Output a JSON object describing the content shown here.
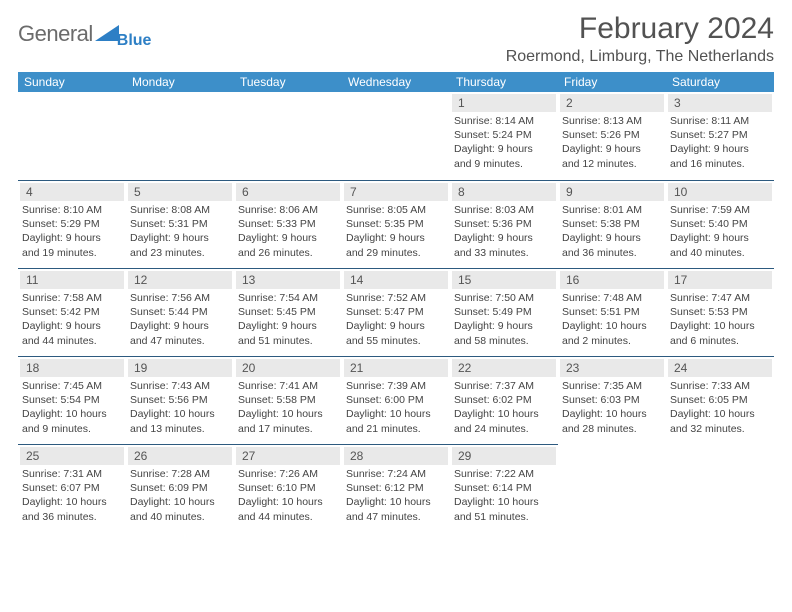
{
  "logo": {
    "text": "General",
    "sub": "Blue"
  },
  "title": "February 2024",
  "location": "Roermond, Limburg, The Netherlands",
  "colors": {
    "header_bg": "#3d8fc9",
    "daynum_bg": "#e9e9e9",
    "rule": "#2d5a7f",
    "text": "#444444"
  },
  "dow": [
    "Sunday",
    "Monday",
    "Tuesday",
    "Wednesday",
    "Thursday",
    "Friday",
    "Saturday"
  ],
  "weeks": [
    [
      null,
      null,
      null,
      null,
      {
        "n": "1",
        "sr": "Sunrise: 8:14 AM",
        "ss": "Sunset: 5:24 PM",
        "dl": "Daylight: 9 hours and 9 minutes."
      },
      {
        "n": "2",
        "sr": "Sunrise: 8:13 AM",
        "ss": "Sunset: 5:26 PM",
        "dl": "Daylight: 9 hours and 12 minutes."
      },
      {
        "n": "3",
        "sr": "Sunrise: 8:11 AM",
        "ss": "Sunset: 5:27 PM",
        "dl": "Daylight: 9 hours and 16 minutes."
      }
    ],
    [
      {
        "n": "4",
        "sr": "Sunrise: 8:10 AM",
        "ss": "Sunset: 5:29 PM",
        "dl": "Daylight: 9 hours and 19 minutes."
      },
      {
        "n": "5",
        "sr": "Sunrise: 8:08 AM",
        "ss": "Sunset: 5:31 PM",
        "dl": "Daylight: 9 hours and 23 minutes."
      },
      {
        "n": "6",
        "sr": "Sunrise: 8:06 AM",
        "ss": "Sunset: 5:33 PM",
        "dl": "Daylight: 9 hours and 26 minutes."
      },
      {
        "n": "7",
        "sr": "Sunrise: 8:05 AM",
        "ss": "Sunset: 5:35 PM",
        "dl": "Daylight: 9 hours and 29 minutes."
      },
      {
        "n": "8",
        "sr": "Sunrise: 8:03 AM",
        "ss": "Sunset: 5:36 PM",
        "dl": "Daylight: 9 hours and 33 minutes."
      },
      {
        "n": "9",
        "sr": "Sunrise: 8:01 AM",
        "ss": "Sunset: 5:38 PM",
        "dl": "Daylight: 9 hours and 36 minutes."
      },
      {
        "n": "10",
        "sr": "Sunrise: 7:59 AM",
        "ss": "Sunset: 5:40 PM",
        "dl": "Daylight: 9 hours and 40 minutes."
      }
    ],
    [
      {
        "n": "11",
        "sr": "Sunrise: 7:58 AM",
        "ss": "Sunset: 5:42 PM",
        "dl": "Daylight: 9 hours and 44 minutes."
      },
      {
        "n": "12",
        "sr": "Sunrise: 7:56 AM",
        "ss": "Sunset: 5:44 PM",
        "dl": "Daylight: 9 hours and 47 minutes."
      },
      {
        "n": "13",
        "sr": "Sunrise: 7:54 AM",
        "ss": "Sunset: 5:45 PM",
        "dl": "Daylight: 9 hours and 51 minutes."
      },
      {
        "n": "14",
        "sr": "Sunrise: 7:52 AM",
        "ss": "Sunset: 5:47 PM",
        "dl": "Daylight: 9 hours and 55 minutes."
      },
      {
        "n": "15",
        "sr": "Sunrise: 7:50 AM",
        "ss": "Sunset: 5:49 PM",
        "dl": "Daylight: 9 hours and 58 minutes."
      },
      {
        "n": "16",
        "sr": "Sunrise: 7:48 AM",
        "ss": "Sunset: 5:51 PM",
        "dl": "Daylight: 10 hours and 2 minutes."
      },
      {
        "n": "17",
        "sr": "Sunrise: 7:47 AM",
        "ss": "Sunset: 5:53 PM",
        "dl": "Daylight: 10 hours and 6 minutes."
      }
    ],
    [
      {
        "n": "18",
        "sr": "Sunrise: 7:45 AM",
        "ss": "Sunset: 5:54 PM",
        "dl": "Daylight: 10 hours and 9 minutes."
      },
      {
        "n": "19",
        "sr": "Sunrise: 7:43 AM",
        "ss": "Sunset: 5:56 PM",
        "dl": "Daylight: 10 hours and 13 minutes."
      },
      {
        "n": "20",
        "sr": "Sunrise: 7:41 AM",
        "ss": "Sunset: 5:58 PM",
        "dl": "Daylight: 10 hours and 17 minutes."
      },
      {
        "n": "21",
        "sr": "Sunrise: 7:39 AM",
        "ss": "Sunset: 6:00 PM",
        "dl": "Daylight: 10 hours and 21 minutes."
      },
      {
        "n": "22",
        "sr": "Sunrise: 7:37 AM",
        "ss": "Sunset: 6:02 PM",
        "dl": "Daylight: 10 hours and 24 minutes."
      },
      {
        "n": "23",
        "sr": "Sunrise: 7:35 AM",
        "ss": "Sunset: 6:03 PM",
        "dl": "Daylight: 10 hours and 28 minutes."
      },
      {
        "n": "24",
        "sr": "Sunrise: 7:33 AM",
        "ss": "Sunset: 6:05 PM",
        "dl": "Daylight: 10 hours and 32 minutes."
      }
    ],
    [
      {
        "n": "25",
        "sr": "Sunrise: 7:31 AM",
        "ss": "Sunset: 6:07 PM",
        "dl": "Daylight: 10 hours and 36 minutes."
      },
      {
        "n": "26",
        "sr": "Sunrise: 7:28 AM",
        "ss": "Sunset: 6:09 PM",
        "dl": "Daylight: 10 hours and 40 minutes."
      },
      {
        "n": "27",
        "sr": "Sunrise: 7:26 AM",
        "ss": "Sunset: 6:10 PM",
        "dl": "Daylight: 10 hours and 44 minutes."
      },
      {
        "n": "28",
        "sr": "Sunrise: 7:24 AM",
        "ss": "Sunset: 6:12 PM",
        "dl": "Daylight: 10 hours and 47 minutes."
      },
      {
        "n": "29",
        "sr": "Sunrise: 7:22 AM",
        "ss": "Sunset: 6:14 PM",
        "dl": "Daylight: 10 hours and 51 minutes."
      },
      null,
      null
    ]
  ]
}
